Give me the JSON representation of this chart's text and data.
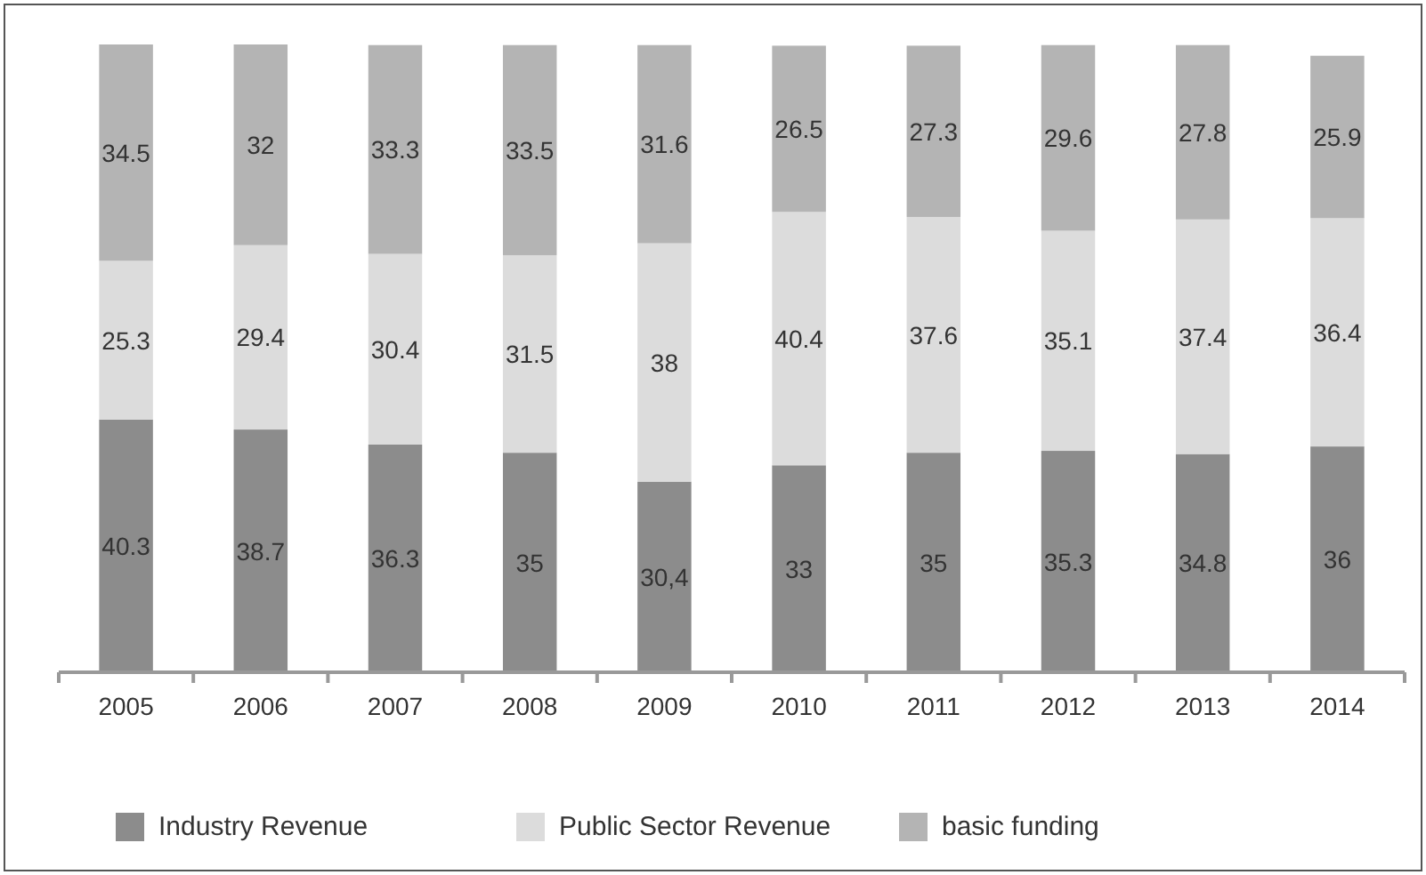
{
  "chart_data": {
    "type": "bar",
    "stacked": true,
    "categories": [
      "2005",
      "2006",
      "2007",
      "2008",
      "2009",
      "2010",
      "2011",
      "2012",
      "2013",
      "2014"
    ],
    "series": [
      {
        "name": "Industry Revenue",
        "color": "#8c8c8c",
        "values": [
          40.3,
          38.7,
          36.3,
          35,
          30.4,
          33,
          35,
          35.3,
          34.8,
          36
        ],
        "value_labels": [
          "40.3",
          "38.7",
          "36.3",
          "35",
          "30,4",
          "33",
          "35",
          "35.3",
          "34.8",
          "36"
        ]
      },
      {
        "name": "Public Sector Revenue",
        "color": "#dcdcdc",
        "values": [
          25.3,
          29.4,
          30.4,
          31.5,
          38,
          40.4,
          37.6,
          35.1,
          37.4,
          36.4
        ],
        "value_labels": [
          "25.3",
          "29.4",
          "30.4",
          "31.5",
          "38",
          "40.4",
          "37.6",
          "35.1",
          "37.4",
          "36.4"
        ]
      },
      {
        "name": "basic funding",
        "color": "#b4b4b4",
        "values": [
          34.5,
          32,
          33.3,
          33.5,
          31.6,
          26.5,
          27.3,
          29.6,
          27.8,
          25.9
        ],
        "value_labels": [
          "34.5",
          "32",
          "33.3",
          "33.5",
          "31.6",
          "26.5",
          "27.3",
          "29.6",
          "27.8",
          "25.9"
        ]
      }
    ],
    "legend": "bottom"
  }
}
